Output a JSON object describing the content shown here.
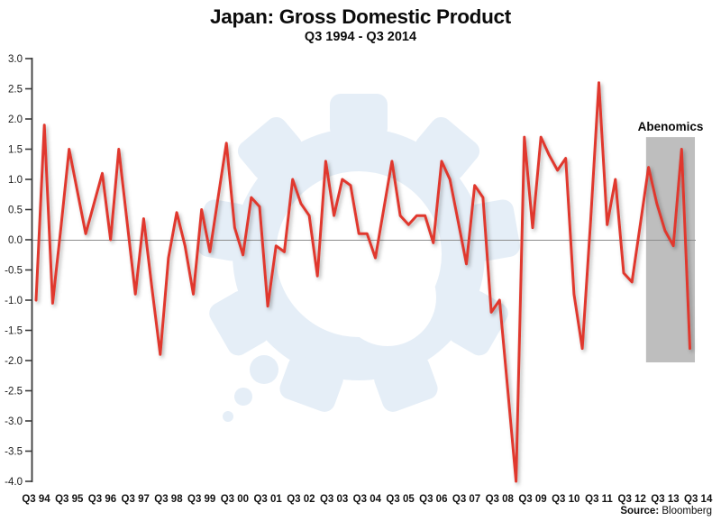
{
  "header": {
    "title": "Japan: Gross Domestic Product",
    "subtitle": "Q3 1994 - Q3 2014"
  },
  "annotation": {
    "label": "Abenomics"
  },
  "source": {
    "prefix": "Source:",
    "name": "Bloomberg",
    "name_color": "#F7941E"
  },
  "watermark": {
    "icon": "gear-icon",
    "color": "#E5EEF7"
  },
  "chart_data": {
    "type": "line",
    "title": "Japan: Gross Domestic Product",
    "subtitle": "Q3 1994 - Q3 2014",
    "x_start": "1994-Q3",
    "x_end_of_line": "2014-Q2",
    "x_axis_end_label": "2014-Q3",
    "frequency": "quarterly",
    "values": [
      -1.0,
      1.9,
      -1.05,
      0.2,
      1.5,
      0.8,
      0.1,
      0.6,
      1.1,
      0.0,
      1.5,
      0.3,
      -0.9,
      0.35,
      -0.8,
      -1.9,
      -0.3,
      0.45,
      -0.1,
      -0.9,
      0.5,
      -0.2,
      0.7,
      1.6,
      0.2,
      -0.25,
      0.7,
      0.55,
      -1.1,
      -0.1,
      -0.2,
      1.0,
      0.6,
      0.4,
      -0.6,
      1.3,
      0.4,
      1.0,
      0.9,
      0.1,
      0.1,
      -0.3,
      0.5,
      1.3,
      0.4,
      0.25,
      0.4,
      0.4,
      -0.05,
      1.3,
      1.0,
      0.3,
      -0.4,
      0.9,
      0.7,
      -1.2,
      -1.0,
      -2.5,
      -4.0,
      1.7,
      0.2,
      1.7,
      1.4,
      1.15,
      1.35,
      -0.9,
      -1.8,
      0.3,
      2.6,
      0.25,
      1.0,
      -0.55,
      -0.7,
      0.25,
      1.2,
      0.6,
      0.15,
      -0.1,
      1.5,
      -1.8
    ],
    "x_tick_labels": [
      "Q3 94",
      "Q3 95",
      "Q3 96",
      "Q3 97",
      "Q3 98",
      "Q3 99",
      "Q3 00",
      "Q3 01",
      "Q3 02",
      "Q3 03",
      "Q3 04",
      "Q3 05",
      "Q3 06",
      "Q3 07",
      "Q3 08",
      "Q3 09",
      "Q3 10",
      "Q3 11",
      "Q3 12",
      "Q3 13",
      "Q3 14"
    ],
    "x_ticks_every_n_points": 4,
    "y_tick_labels": [
      "3.0",
      "2.5",
      "2.0",
      "1.5",
      "1.0",
      "0.5",
      "0.0",
      "-0.5",
      "-1.0",
      "-1.5",
      "-2.0",
      "-2.5",
      "-3.0",
      "-3.5",
      "-4.0"
    ],
    "ylim": [
      -4.0,
      3.0
    ],
    "zero_gridline": true,
    "legend": false,
    "line_color": "#E0392E",
    "axis_color": "#3a3a3a",
    "zero_line_color": "#8c8c8c",
    "highlight_region": {
      "label": "Abenomics",
      "color": "#BEBEBE",
      "start_index": 73.7,
      "end_index": 79.6,
      "y_top": 1.7,
      "y_bottom": -2.03
    }
  }
}
